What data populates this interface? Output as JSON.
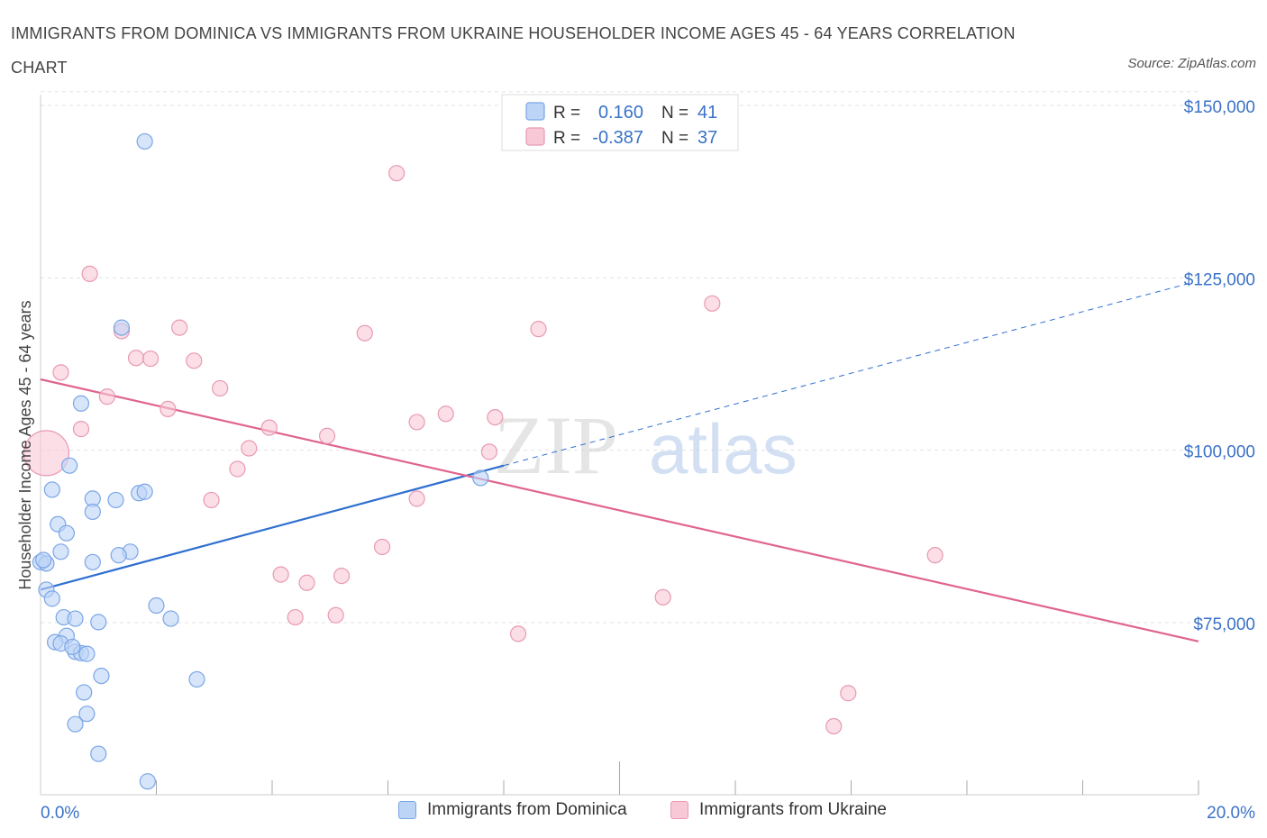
{
  "title": "IMMIGRANTS FROM DOMINICA VS IMMIGRANTS FROM UKRAINE HOUSEHOLDER INCOME AGES 45 - 64 YEARS CORRELATION CHART",
  "source": "Source: ZipAtlas.com",
  "watermark": {
    "zip": "ZIP",
    "atlas": "atlas"
  },
  "stats_legend": {
    "r_label": "R =",
    "n_label": "N =",
    "rows": [
      {
        "r": "0.160",
        "n": "41",
        "fill": "#bcd4f6",
        "stroke": "#7aa6e6"
      },
      {
        "r": "-0.387",
        "n": "37",
        "fill": "#f8c8d6",
        "stroke": "#e89ab2"
      }
    ]
  },
  "chart_data": {
    "type": "scatter",
    "title": "IMMIGRANTS FROM DOMINICA VS IMMIGRANTS FROM UKRAINE HOUSEHOLDER INCOME AGES 45 - 64 YEARS CORRELATION CHART",
    "xlabel": "",
    "ylabel": "Householder Income Ages 45 - 64 years",
    "xlim": [
      0,
      20
    ],
    "ylim": [
      52000,
      152000
    ],
    "x_tick_labels": [
      {
        "value": 0,
        "label": "0.0%"
      },
      {
        "value": 20,
        "label": "20.0%"
      }
    ],
    "y_ticks": [
      {
        "value": 75000,
        "label": "$75,000"
      },
      {
        "value": 100000,
        "label": "$100,000"
      },
      {
        "value": 125000,
        "label": "$125,000"
      },
      {
        "value": 150000,
        "label": "$150,000"
      }
    ],
    "grid": true,
    "legend_position": "bottom",
    "series": [
      {
        "name": "Immigrants from Dominica",
        "color": "#7aa6e6",
        "fill": "#bcd4f6",
        "line_color": "#2f6fcf",
        "trend": {
          "x0": 0,
          "y0": 82000,
          "x1": 8,
          "y1": 100000,
          "dashed_to_x": 20,
          "dashed_to_y": 126500
        },
        "points": [
          {
            "x": 1.8,
            "y": 147000
          },
          {
            "x": 1.4,
            "y": 120000
          },
          {
            "x": 0.7,
            "y": 109000
          },
          {
            "x": 0.5,
            "y": 100000
          },
          {
            "x": 0.2,
            "y": 96500
          },
          {
            "x": 0.9,
            "y": 95200
          },
          {
            "x": 1.3,
            "y": 95000
          },
          {
            "x": 1.7,
            "y": 96000
          },
          {
            "x": 1.8,
            "y": 96200
          },
          {
            "x": 0.9,
            "y": 93300
          },
          {
            "x": 0.3,
            "y": 91500
          },
          {
            "x": 0.45,
            "y": 90200
          },
          {
            "x": 0.35,
            "y": 87500
          },
          {
            "x": 1.55,
            "y": 87500
          },
          {
            "x": 1.35,
            "y": 87000
          },
          {
            "x": 0.0,
            "y": 86000
          },
          {
            "x": 0.1,
            "y": 85800
          },
          {
            "x": 0.9,
            "y": 86000
          },
          {
            "x": 0.1,
            "y": 82000
          },
          {
            "x": 0.2,
            "y": 80700
          },
          {
            "x": 2.0,
            "y": 79700
          },
          {
            "x": 0.4,
            "y": 78000
          },
          {
            "x": 0.6,
            "y": 77800
          },
          {
            "x": 2.25,
            "y": 77800
          },
          {
            "x": 1.0,
            "y": 77300
          },
          {
            "x": 0.45,
            "y": 75300
          },
          {
            "x": 0.25,
            "y": 74400
          },
          {
            "x": 0.35,
            "y": 74200
          },
          {
            "x": 0.6,
            "y": 73000
          },
          {
            "x": 0.7,
            "y": 72800
          },
          {
            "x": 0.8,
            "y": 72700
          },
          {
            "x": 1.05,
            "y": 69500
          },
          {
            "x": 2.7,
            "y": 69000
          },
          {
            "x": 0.75,
            "y": 67100
          },
          {
            "x": 0.8,
            "y": 64000
          },
          {
            "x": 0.6,
            "y": 62500
          },
          {
            "x": 1.0,
            "y": 58200
          },
          {
            "x": 1.85,
            "y": 54200
          },
          {
            "x": 7.6,
            "y": 98200
          },
          {
            "x": 0.05,
            "y": 86300
          },
          {
            "x": 0.55,
            "y": 73700
          }
        ]
      },
      {
        "name": "Immigrants from Ukraine",
        "color": "#e89ab2",
        "fill": "#f8c8d6",
        "line_color": "#e0648e",
        "trend": {
          "x0": 0,
          "y0": 112500,
          "x1": 20,
          "y1": 74500
        },
        "points": [
          {
            "x": 6.15,
            "y": 142400
          },
          {
            "x": 0.85,
            "y": 127800
          },
          {
            "x": 11.6,
            "y": 123500
          },
          {
            "x": 2.4,
            "y": 120000
          },
          {
            "x": 1.4,
            "y": 119500
          },
          {
            "x": 5.6,
            "y": 119200
          },
          {
            "x": 1.65,
            "y": 115600
          },
          {
            "x": 1.9,
            "y": 115500
          },
          {
            "x": 2.65,
            "y": 115200
          },
          {
            "x": 0.35,
            "y": 113500
          },
          {
            "x": 3.1,
            "y": 111200
          },
          {
            "x": 1.15,
            "y": 110000
          },
          {
            "x": 2.2,
            "y": 108200
          },
          {
            "x": 7.0,
            "y": 107500
          },
          {
            "x": 7.85,
            "y": 107000
          },
          {
            "x": 6.5,
            "y": 106300
          },
          {
            "x": 0.7,
            "y": 105300
          },
          {
            "x": 3.95,
            "y": 105500
          },
          {
            "x": 4.95,
            "y": 104300
          },
          {
            "x": 0.1,
            "y": 101800
          },
          {
            "x": 3.6,
            "y": 102500
          },
          {
            "x": 7.75,
            "y": 102000
          },
          {
            "x": 3.4,
            "y": 99500
          },
          {
            "x": 2.95,
            "y": 95000
          },
          {
            "x": 6.5,
            "y": 95200
          },
          {
            "x": 5.9,
            "y": 88200
          },
          {
            "x": 15.45,
            "y": 87000
          },
          {
            "x": 4.15,
            "y": 84200
          },
          {
            "x": 5.2,
            "y": 84000
          },
          {
            "x": 4.6,
            "y": 83000
          },
          {
            "x": 10.75,
            "y": 80900
          },
          {
            "x": 4.4,
            "y": 78000
          },
          {
            "x": 5.1,
            "y": 78300
          },
          {
            "x": 8.25,
            "y": 75600
          },
          {
            "x": 13.95,
            "y": 67000
          },
          {
            "x": 13.7,
            "y": 62200
          },
          {
            "x": 8.6,
            "y": 119800
          }
        ]
      }
    ]
  }
}
